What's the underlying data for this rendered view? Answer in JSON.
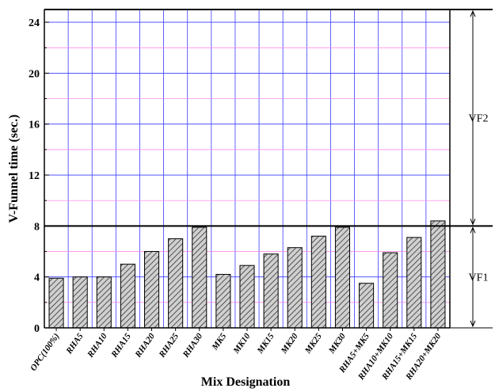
{
  "chart_data": {
    "type": "bar",
    "ylabel": "V-Funnel time (sec.)",
    "xlabel": "Mix Designation",
    "ylim": [
      0,
      25
    ],
    "yticks": [
      0,
      4,
      8,
      12,
      16,
      20,
      24
    ],
    "grid": true,
    "categories": [
      "OPC(100%)",
      "RHA5",
      "RHA10",
      "RHA15",
      "RHA20",
      "RHA25",
      "RHA30",
      "MK5",
      "MK10",
      "MK15",
      "MK20",
      "MK25",
      "MK30",
      "RHA5+MK5",
      "RHA10+MK10",
      "RHA15+MK15",
      "RHA20+MK20"
    ],
    "values": [
      3.9,
      4.0,
      4.0,
      5.0,
      6.0,
      7.0,
      7.9,
      4.2,
      4.9,
      5.8,
      6.3,
      7.2,
      7.9,
      3.5,
      5.9,
      7.1,
      8.4
    ],
    "bar_fill": "#c8c8c8",
    "bar_pattern": "diagonal-hatch",
    "grid_major_color": "#3b3bff",
    "grid_minor_color": "#ff7be8",
    "zones": [
      {
        "label": "VF1",
        "from": 0,
        "to": 8
      },
      {
        "label": "VF2",
        "from": 8,
        "to": 25
      }
    ],
    "threshold_line": 8
  }
}
